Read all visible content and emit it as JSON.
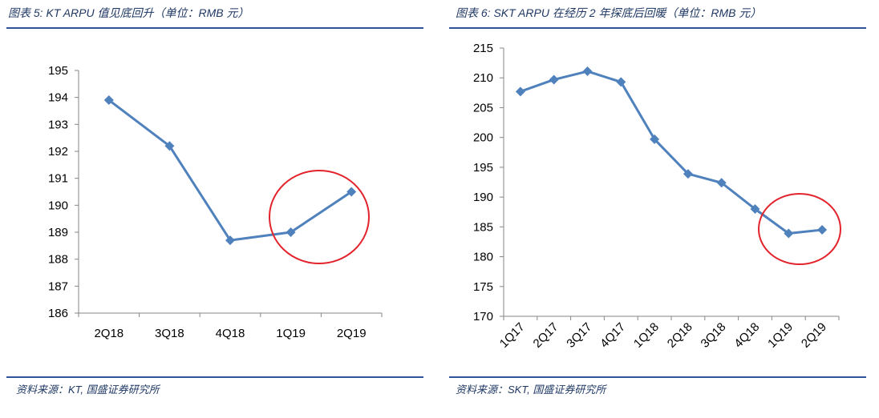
{
  "colors": {
    "rule": "#2F5597",
    "title_text": "#1F3864",
    "axis": "#868686",
    "highlight": "#E3232C"
  },
  "panels": [
    {
      "source": "资料来源：KT, 国盛证券研究所"
    },
    {
      "source": "资料来源：SKT, 国盛证券研究所"
    }
  ],
  "chart_data": [
    {
      "type": "line",
      "title": "图表 5: KT ARPU 值见底回升（单位：RMB 元）",
      "xlabel": "",
      "ylabel": "",
      "categories": [
        "2Q18",
        "3Q18",
        "4Q18",
        "1Q19",
        "2Q19"
      ],
      "series": [
        {
          "values": [
            193.9,
            192.2,
            188.7,
            189.0,
            190.5
          ]
        }
      ],
      "ylim": [
        186,
        195
      ],
      "yticks": [
        186,
        187,
        188,
        189,
        190,
        191,
        192,
        193,
        194,
        195
      ],
      "grid": false,
      "legend": "none",
      "color": "#4F81BD",
      "marker": "diamond"
    },
    {
      "type": "line",
      "title": "图表 6: SKT ARPU 在经历 2 年探底后回暖（单位：RMB 元）",
      "xlabel": "",
      "ylabel": "",
      "categories": [
        "1Q17",
        "2Q17",
        "3Q17",
        "4Q17",
        "1Q18",
        "2Q18",
        "3Q18",
        "4Q18",
        "1Q19",
        "2Q19"
      ],
      "series": [
        {
          "values": [
            207.7,
            209.7,
            211.1,
            209.3,
            199.7,
            193.9,
            192.4,
            188.0,
            183.9,
            184.5
          ]
        }
      ],
      "ylim": [
        170,
        215
      ],
      "yticks": [
        170,
        175,
        180,
        185,
        190,
        195,
        200,
        205,
        210,
        215
      ],
      "grid": false,
      "legend": "none",
      "color": "#4F81BD",
      "marker": "diamond"
    }
  ]
}
